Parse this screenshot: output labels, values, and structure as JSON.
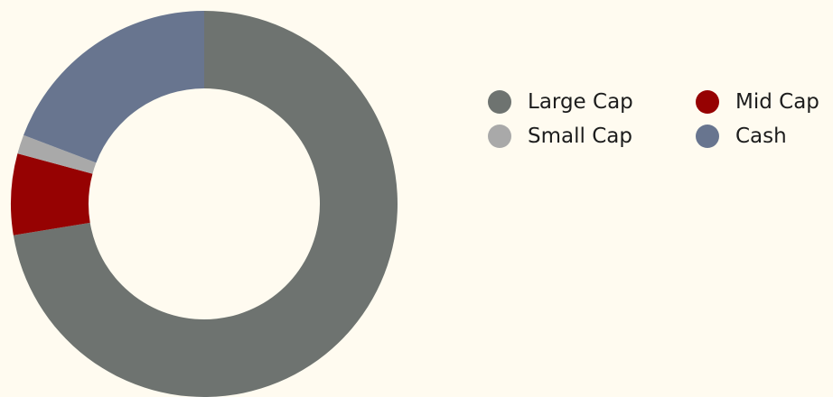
{
  "chart_data": {
    "type": "pie",
    "donut": true,
    "title": "",
    "categories": [
      "Large Cap",
      "Mid Cap",
      "Small Cap",
      "Cash"
    ],
    "values": [
      72.4,
      6.8,
      1.6,
      19.2
    ],
    "colors": [
      "#6e7370",
      "#960202",
      "#a9a9a9",
      "#68758f"
    ],
    "legend_placement": "right",
    "legend_order": [
      "Large Cap",
      "Mid Cap",
      "Small Cap",
      "Cash"
    ]
  }
}
